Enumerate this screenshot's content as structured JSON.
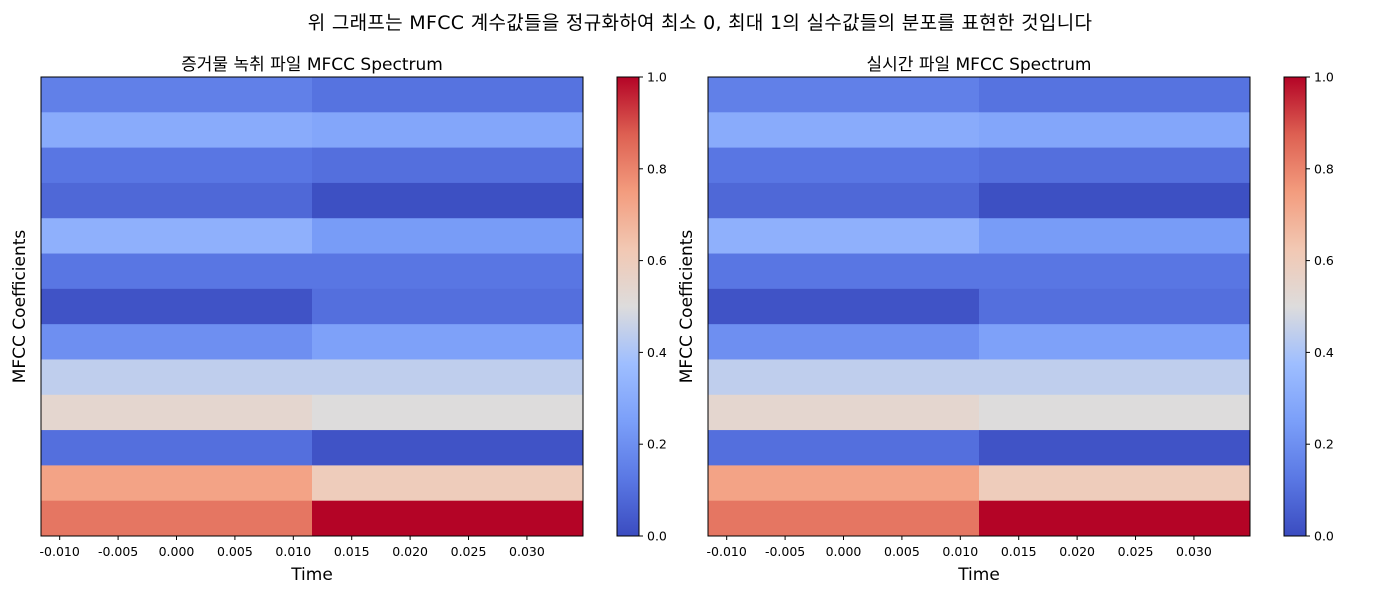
{
  "suptitle": "위 그래프는 MFCC 계수값들을 정규화하여 최소 0, 최대 1의 실수값들의 분포를 표현한 것입니다",
  "colormap": {
    "name": "coolwarm",
    "stops": [
      [
        0.0,
        "#3b4cc0"
      ],
      [
        0.125,
        "#5a78e4"
      ],
      [
        0.25,
        "#7b9ff9"
      ],
      [
        0.375,
        "#9ebeff"
      ],
      [
        0.5,
        "#dddcdc"
      ],
      [
        0.625,
        "#f2c8b3"
      ],
      [
        0.75,
        "#f39c7e"
      ],
      [
        0.875,
        "#dd6052"
      ],
      [
        1.0,
        "#b40426"
      ]
    ]
  },
  "chart_data": [
    {
      "type": "heatmap",
      "title": "증거물 녹취 파일 MFCC Spectrum",
      "xlabel": "Time",
      "ylabel": "MFCC Coefficients",
      "x_tick_labels": [
        "-0.010",
        "-0.005",
        "0.000",
        "0.005",
        "0.010",
        "0.015",
        "0.020",
        "0.025",
        "0.030"
      ],
      "x_ticks": [
        -0.01,
        -0.005,
        0.0,
        0.005,
        0.01,
        0.015,
        0.02,
        0.025,
        0.03
      ],
      "xlim": [
        -0.0116,
        0.0348
      ],
      "frame_edges": [
        -0.0116,
        0.0116,
        0.0348
      ],
      "colorbar_ticks": [
        "0.0",
        "0.2",
        "0.4",
        "0.6",
        "0.8",
        "1.0"
      ],
      "clim": [
        0,
        1
      ],
      "values_top_to_bottom": [
        [
          0.15,
          0.11
        ],
        [
          0.3,
          0.28
        ],
        [
          0.12,
          0.1
        ],
        [
          0.08,
          0.01
        ],
        [
          0.32,
          0.24
        ],
        [
          0.12,
          0.12
        ],
        [
          0.02,
          0.1
        ],
        [
          0.2,
          0.26
        ],
        [
          0.44,
          0.44
        ],
        [
          0.54,
          0.5
        ],
        [
          0.1,
          0.02
        ],
        [
          0.73,
          0.6
        ],
        [
          0.83,
          1.0
        ]
      ]
    },
    {
      "type": "heatmap",
      "title": "실시간 파일 MFCC Spectrum",
      "xlabel": "Time",
      "ylabel": "MFCC Coefficients",
      "x_tick_labels": [
        "-0.010",
        "-0.005",
        "0.000",
        "0.005",
        "0.010",
        "0.015",
        "0.020",
        "0.025",
        "0.030"
      ],
      "x_ticks": [
        -0.01,
        -0.005,
        0.0,
        0.005,
        0.01,
        0.015,
        0.02,
        0.025,
        0.03
      ],
      "xlim": [
        -0.0116,
        0.0348
      ],
      "frame_edges": [
        -0.0116,
        0.0116,
        0.0348
      ],
      "colorbar_ticks": [
        "0.0",
        "0.2",
        "0.4",
        "0.6",
        "0.8",
        "1.0"
      ],
      "clim": [
        0,
        1
      ],
      "values_top_to_bottom": [
        [
          0.15,
          0.11
        ],
        [
          0.3,
          0.28
        ],
        [
          0.12,
          0.1
        ],
        [
          0.08,
          0.01
        ],
        [
          0.32,
          0.24
        ],
        [
          0.12,
          0.12
        ],
        [
          0.02,
          0.1
        ],
        [
          0.2,
          0.26
        ],
        [
          0.44,
          0.44
        ],
        [
          0.54,
          0.5
        ],
        [
          0.1,
          0.02
        ],
        [
          0.73,
          0.6
        ],
        [
          0.83,
          1.0
        ]
      ]
    }
  ]
}
